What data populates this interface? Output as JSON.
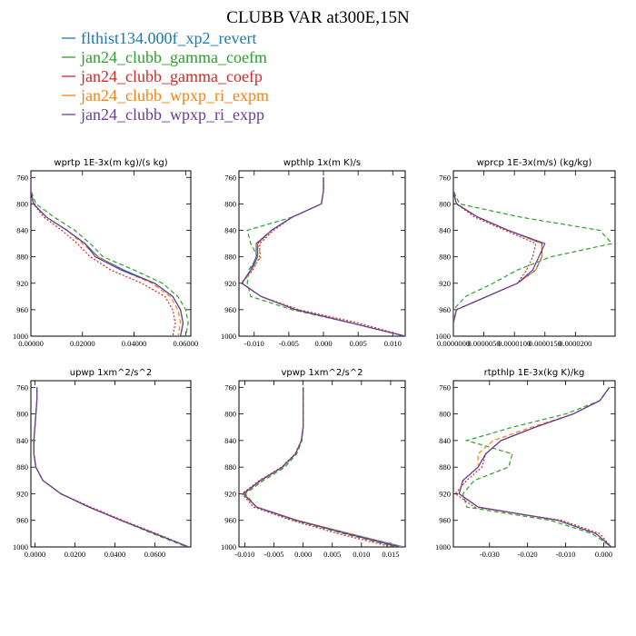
{
  "figure": {
    "title": "CLUBB VAR at300E,15N"
  },
  "colors": {
    "flthist134.000f_xp2_revert": "#1f77b4",
    "jan24_clubb_gamma_coefm": "#2ca02c",
    "jan24_clubb_gamma_coefp": "#d62728",
    "jan24_clubb_wpxp_ri_expm": "#ff7f0e",
    "jan24_clubb_wpxp_ri_expp": "#6a3d9a"
  },
  "legend": [
    {
      "label": "flthist134.000f_xp2_revert",
      "color": "#1f77b4",
      "dash": "solid"
    },
    {
      "label": "jan24_clubb_gamma_coefm",
      "color": "#2ca02c",
      "dash": "dashed"
    },
    {
      "label": "jan24_clubb_gamma_coefp",
      "color": "#d62728",
      "dash": "dotted"
    },
    {
      "label": "jan24_clubb_wpxp_ri_expm",
      "color": "#ff7f0e",
      "dash": "dashed"
    },
    {
      "label": "jan24_clubb_wpxp_ri_expp",
      "color": "#6a3d9a",
      "dash": "solid"
    }
  ],
  "chart_data": [
    {
      "type": "line",
      "title": "wprtp  1E-3x(m kg)/(s kg)",
      "xlim": [
        0,
        0.062
      ],
      "ylim": [
        1000,
        750
      ],
      "xticks": [
        "0.00000",
        "0.02000",
        "0.04000",
        "0.06000"
      ],
      "xtick_values": [
        0,
        0.02,
        0.04,
        0.06
      ],
      "yticks": [
        760,
        800,
        840,
        880,
        920,
        960,
        1000
      ],
      "y": [
        760,
        780,
        800,
        820,
        840,
        860,
        880,
        900,
        920,
        940,
        960,
        980,
        1000
      ],
      "series": [
        {
          "name": "flthist134.000f_xp2_revert",
          "x": [
            0.0,
            0.0,
            0.001,
            0.006,
            0.014,
            0.021,
            0.026,
            0.036,
            0.048,
            0.055,
            0.058,
            0.059,
            0.058
          ]
        },
        {
          "name": "jan24_clubb_gamma_coefm",
          "x": [
            0.0,
            0.0,
            0.002,
            0.009,
            0.017,
            0.023,
            0.028,
            0.04,
            0.051,
            0.057,
            0.06,
            0.061,
            0.06
          ]
        },
        {
          "name": "jan24_clubb_gamma_coefp",
          "x": [
            0.0,
            0.0,
            0.001,
            0.005,
            0.012,
            0.018,
            0.023,
            0.031,
            0.043,
            0.052,
            0.055,
            0.056,
            0.055
          ]
        },
        {
          "name": "jan24_clubb_wpxp_ri_expm",
          "x": [
            0.0,
            0.0,
            0.001,
            0.006,
            0.014,
            0.02,
            0.026,
            0.035,
            0.047,
            0.054,
            0.057,
            0.058,
            0.057
          ]
        },
        {
          "name": "jan24_clubb_wpxp_ri_expp",
          "x": [
            0.0,
            0.0,
            0.001,
            0.006,
            0.014,
            0.021,
            0.025,
            0.035,
            0.048,
            0.055,
            0.058,
            0.059,
            0.058
          ]
        }
      ]
    },
    {
      "type": "line",
      "title": "wpthlp  1x(m K)/s",
      "xlim": [
        -0.0122,
        0.0118
      ],
      "ylim": [
        1000,
        750
      ],
      "xticks": [
        "-0.010",
        "-0.005",
        "0.000",
        "0.005",
        "0.010"
      ],
      "xtick_values": [
        -0.01,
        -0.005,
        0,
        0.005,
        0.01
      ],
      "yticks": [
        760,
        800,
        840,
        880,
        920,
        960,
        1000
      ],
      "y": [
        760,
        780,
        800,
        820,
        840,
        860,
        880,
        900,
        920,
        940,
        960,
        980,
        1000
      ],
      "series": [
        {
          "name": "flthist134.000f_xp2_revert",
          "x": [
            0.0,
            0.0,
            -0.0003,
            -0.0045,
            -0.0075,
            -0.0095,
            -0.0095,
            -0.0104,
            -0.0118,
            -0.009,
            -0.004,
            0.004,
            0.0118
          ]
        },
        {
          "name": "jan24_clubb_gamma_coefm",
          "x": [
            0.0,
            0.0,
            -0.0003,
            -0.0045,
            -0.011,
            -0.0105,
            -0.0095,
            -0.0108,
            -0.011,
            -0.0105,
            -0.0045,
            0.004,
            0.0118
          ]
        },
        {
          "name": "jan24_clubb_gamma_coefp",
          "x": [
            0.0,
            0.0,
            -0.0003,
            -0.0045,
            -0.0072,
            -0.0092,
            -0.0092,
            -0.0102,
            -0.0118,
            -0.009,
            -0.0035,
            0.005,
            0.0118
          ]
        },
        {
          "name": "jan24_clubb_wpxp_ri_expm",
          "x": [
            0.0,
            0.0,
            -0.0003,
            -0.0045,
            -0.0075,
            -0.0095,
            -0.009,
            -0.0104,
            -0.0118,
            -0.009,
            -0.004,
            0.004,
            0.0118
          ]
        },
        {
          "name": "jan24_clubb_wpxp_ri_expp",
          "x": [
            0.0,
            0.0,
            -0.0003,
            -0.0045,
            -0.0075,
            -0.0097,
            -0.0097,
            -0.0105,
            -0.0118,
            -0.009,
            -0.004,
            0.004,
            0.0118
          ]
        }
      ]
    },
    {
      "type": "line",
      "title": "wprcp  1E-3x(m/s) (kg/kg)",
      "xlim": [
        0,
        2.65e-05
      ],
      "ylim": [
        1000,
        750
      ],
      "xticks": [
        "0.0000000",
        "0.0000050",
        "0.0000100",
        "0.0000150",
        "0.0000200"
      ],
      "xtick_values": [
        0,
        5e-06,
        1e-05,
        1.5e-05,
        2e-05
      ],
      "yticks": [
        760,
        800,
        840,
        880,
        920,
        960,
        1000
      ],
      "y": [
        760,
        780,
        800,
        820,
        840,
        860,
        880,
        900,
        920,
        940,
        960,
        980,
        1000
      ],
      "series": [
        {
          "name": "flthist134.000f_xp2_revert",
          "x": [
            0.0,
            0.0,
            5e-07,
            4e-06,
            9e-06,
            1.45e-05,
            1.45e-05,
            1.35e-05,
            1.05e-05,
            5.5e-06,
            5e-07,
            0.0,
            0.0
          ]
        },
        {
          "name": "jan24_clubb_gamma_coefm",
          "x": [
            0.0,
            0.0,
            1e-06,
            1.1e-05,
            2.4e-05,
            2.6e-05,
            1.6e-05,
            1.05e-05,
            6.5e-06,
            2e-06,
            0.0,
            0.0,
            0.0
          ]
        },
        {
          "name": "jan24_clubb_gamma_coefp",
          "x": [
            0.0,
            0.0,
            5e-07,
            3.5e-06,
            8.5e-06,
            1.35e-05,
            1.3e-05,
            1.2e-05,
            1.05e-05,
            5.5e-06,
            5e-07,
            0.0,
            0.0
          ]
        },
        {
          "name": "jan24_clubb_wpxp_ri_expm",
          "x": [
            0.0,
            0.0,
            5e-07,
            4e-06,
            9e-06,
            1.45e-05,
            1.45e-05,
            1.35e-05,
            1.05e-05,
            5.5e-06,
            5e-07,
            0.0,
            0.0
          ]
        },
        {
          "name": "jan24_clubb_wpxp_ri_expp",
          "x": [
            0.0,
            0.0,
            5e-07,
            4e-06,
            9e-06,
            1.5e-05,
            1.4e-05,
            1.3e-05,
            1.05e-05,
            5.5e-06,
            5e-07,
            0.0,
            0.0
          ]
        }
      ]
    },
    {
      "type": "line",
      "title": "upwp  1xm^2/s^2",
      "xlim": [
        -0.002,
        0.078
      ],
      "ylim": [
        1000,
        750
      ],
      "xticks": [
        "0.0000",
        "0.0200",
        "0.0400",
        "0.0600"
      ],
      "xtick_values": [
        0,
        0.02,
        0.04,
        0.06
      ],
      "yticks": [
        760,
        800,
        840,
        880,
        920,
        960,
        1000
      ],
      "y": [
        760,
        780,
        800,
        820,
        840,
        860,
        880,
        900,
        920,
        940,
        960,
        980,
        1000
      ],
      "series": [
        {
          "name": "flthist134.000f_xp2_revert",
          "x": [
            0.001,
            0.001,
            0.0005,
            0.0,
            -0.0005,
            -0.0005,
            0.0005,
            0.004,
            0.013,
            0.027,
            0.043,
            0.06,
            0.077
          ]
        },
        {
          "name": "jan24_clubb_gamma_coefm",
          "x": [
            0.001,
            0.001,
            0.0005,
            0.0,
            -0.0005,
            -0.0005,
            0.0005,
            0.004,
            0.013,
            0.027,
            0.043,
            0.059,
            0.076
          ]
        },
        {
          "name": "jan24_clubb_gamma_coefp",
          "x": [
            0.001,
            0.001,
            0.0005,
            0.0,
            -0.0005,
            -0.0005,
            0.0005,
            0.004,
            0.013,
            0.028,
            0.044,
            0.061,
            0.077
          ]
        },
        {
          "name": "jan24_clubb_wpxp_ri_expm",
          "x": [
            0.001,
            0.001,
            0.0005,
            0.0,
            -0.0005,
            -0.0005,
            0.0005,
            0.004,
            0.013,
            0.027,
            0.043,
            0.06,
            0.077
          ]
        },
        {
          "name": "jan24_clubb_wpxp_ri_expp",
          "x": [
            0.001,
            0.001,
            0.0005,
            0.0,
            -0.0005,
            -0.0005,
            0.0005,
            0.004,
            0.013,
            0.027,
            0.043,
            0.06,
            0.077
          ]
        }
      ]
    },
    {
      "type": "line",
      "title": "vpwp  1xm^2/s^2",
      "xlim": [
        -0.011,
        0.0175
      ],
      "ylim": [
        1000,
        750
      ],
      "xticks": [
        "-0.010",
        "-0.005",
        "0.000",
        "0.005",
        "0.010",
        "0.015"
      ],
      "xtick_values": [
        -0.01,
        -0.005,
        0,
        0.005,
        0.01,
        0.015
      ],
      "yticks": [
        760,
        800,
        840,
        880,
        920,
        960,
        1000
      ],
      "y": [
        760,
        780,
        800,
        820,
        840,
        860,
        880,
        900,
        920,
        940,
        960,
        980,
        1000
      ],
      "series": [
        {
          "name": "flthist134.000f_xp2_revert",
          "x": [
            0.0,
            0.0,
            0.0,
            0.0,
            -0.0003,
            -0.0013,
            -0.0035,
            -0.0072,
            -0.0102,
            -0.008,
            -0.001,
            0.008,
            0.0172
          ]
        },
        {
          "name": "jan24_clubb_gamma_coefm",
          "x": [
            0.0,
            0.0,
            0.0,
            0.0,
            -0.0002,
            -0.0011,
            -0.0031,
            -0.0068,
            -0.0099,
            -0.008,
            -0.0015,
            0.007,
            0.016
          ]
        },
        {
          "name": "jan24_clubb_gamma_coefp",
          "x": [
            0.0,
            0.0,
            0.0,
            0.0,
            -0.0003,
            -0.0014,
            -0.0037,
            -0.0075,
            -0.0105,
            -0.0085,
            -0.002,
            0.006,
            0.0152
          ]
        },
        {
          "name": "jan24_clubb_wpxp_ri_expm",
          "x": [
            0.0,
            0.0,
            0.0,
            0.0,
            -0.0003,
            -0.0013,
            -0.0035,
            -0.0072,
            -0.0102,
            -0.008,
            -0.001,
            0.008,
            0.0168
          ]
        },
        {
          "name": "jan24_clubb_wpxp_ri_expp",
          "x": [
            0.0,
            0.0,
            0.0,
            0.0,
            -0.0003,
            -0.0013,
            -0.0036,
            -0.0073,
            -0.0103,
            -0.008,
            -0.0012,
            0.0075,
            0.0165
          ]
        }
      ]
    },
    {
      "type": "line",
      "title": "rtpthlp  1E-3x(kg K)/kg",
      "xlim": [
        -0.0395,
        0.003
      ],
      "ylim": [
        1000,
        750
      ],
      "xticks": [
        "-0.030",
        "-0.020",
        "-0.010",
        "0.000"
      ],
      "xtick_values": [
        -0.03,
        -0.02,
        -0.01,
        0
      ],
      "yticks": [
        760,
        800,
        840,
        880,
        920,
        960,
        1000
      ],
      "y": [
        760,
        780,
        800,
        820,
        840,
        860,
        880,
        900,
        920,
        940,
        960,
        980,
        1000
      ],
      "series": [
        {
          "name": "flthist134.000f_xp2_revert",
          "x": [
            0.0015,
            -0.001,
            -0.008,
            -0.018,
            -0.027,
            -0.031,
            -0.033,
            -0.037,
            -0.038,
            -0.033,
            -0.012,
            -0.002,
            0.002
          ]
        },
        {
          "name": "jan24_clubb_gamma_coefm",
          "x": [
            0.0015,
            -0.001,
            -0.01,
            -0.024,
            -0.036,
            -0.024,
            -0.025,
            -0.034,
            -0.037,
            -0.036,
            -0.014,
            -0.003,
            0.002
          ]
        },
        {
          "name": "jan24_clubb_gamma_coefp",
          "x": [
            0.0015,
            -0.001,
            -0.008,
            -0.018,
            -0.027,
            -0.031,
            -0.032,
            -0.036,
            -0.039,
            -0.034,
            -0.011,
            -0.001,
            0.002
          ]
        },
        {
          "name": "jan24_clubb_wpxp_ri_expm",
          "x": [
            0.0015,
            -0.001,
            -0.008,
            -0.019,
            -0.029,
            -0.033,
            -0.033,
            -0.037,
            -0.038,
            -0.033,
            -0.012,
            -0.002,
            0.002
          ]
        },
        {
          "name": "jan24_clubb_wpxp_ri_expp",
          "x": [
            0.0015,
            -0.001,
            -0.008,
            -0.018,
            -0.027,
            -0.031,
            -0.033,
            -0.037,
            -0.038,
            -0.033,
            -0.012,
            -0.002,
            0.002
          ]
        }
      ]
    }
  ]
}
